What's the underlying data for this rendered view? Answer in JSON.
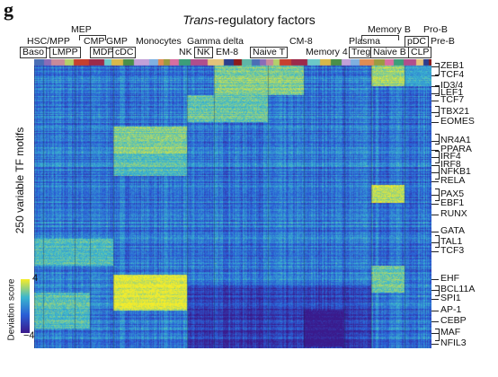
{
  "panel_letter": "g",
  "title_italic": "Trans",
  "title_rest": "-regulatory factors",
  "y_label": "250 variable TF motifs",
  "colorbar": {
    "title": "Deviation score",
    "max": "4",
    "min": "−4",
    "colors": [
      "#3a1a8c",
      "#2a5fd6",
      "#3bb7cf",
      "#f4ec2b"
    ]
  },
  "cell_types": {
    "baso": "Baso",
    "hsc": "HSC/MPP",
    "lmpp": "LMPP",
    "mep": "MEP",
    "cmp": "CMP",
    "gmp": "GMP",
    "mdp": "MDP",
    "cdc": "cDC",
    "mono": "Monocytes",
    "gdelta": "Gamma delta",
    "nk1": "NK",
    "nk2": "NK",
    "em8": "EM-8",
    "naive_t": "Naive T",
    "cm8": "CM-8",
    "mem4": "Memory 4",
    "plasma": "Plasma",
    "treg": "Treg",
    "memb": "Memory B",
    "naiveb": "Naive B",
    "pdc": "pDC",
    "clp": "CLP",
    "prob": "Pro-B",
    "preb": "Pre-B"
  },
  "row_labels": [
    "ZEB1",
    "TCF4",
    "ID3/4",
    "LEF1",
    "TCF7",
    "TBX21",
    "EOMES",
    "NR4A1",
    "PPARA",
    "IRF4",
    "IRF8",
    "NFKB1",
    "RELA",
    "PAX5",
    "EBF1",
    "RUNX",
    "GATA",
    "TAL1",
    "TCF3",
    "EHF",
    "BCL11A",
    "SPI1",
    "AP-1",
    "CEBP",
    "MAF",
    "NFIL3"
  ]
}
